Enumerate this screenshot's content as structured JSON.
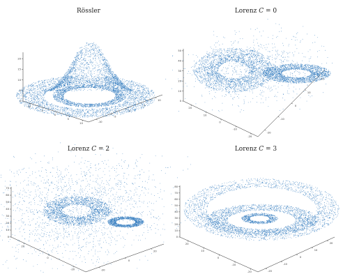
{
  "figure": {
    "point_color": "#1f6fb8"
  },
  "chart_data": [
    {
      "type": "scatter",
      "title": "Rössler",
      "z_ticks": [
        "0",
        "5",
        "10",
        "15",
        "20"
      ],
      "zlim": [
        0,
        23
      ],
      "x_ticks": [
        "-10",
        "-5",
        "0",
        "5",
        "10"
      ],
      "y_ticks": [
        "-10",
        "-5",
        "0",
        "5",
        "10"
      ],
      "grid": false,
      "legend": "none"
    },
    {
      "type": "scatter",
      "title": "Lorenz C = 0",
      "z_ticks": [
        "0",
        "10",
        "20",
        "30",
        "40",
        "50"
      ],
      "zlim": [
        0,
        52
      ],
      "x_ticks": [
        "20",
        "10",
        "0",
        "-10",
        "-20"
      ],
      "y_ticks": [
        "-20",
        "-10",
        "0",
        "10",
        "20"
      ],
      "grid": false,
      "legend": "none"
    },
    {
      "type": "scatter",
      "title": "Lorenz C = 2",
      "z_ticks": [
        "0",
        "10",
        "20",
        "30",
        "40",
        "50",
        "60",
        "70"
      ],
      "zlim": [
        0,
        72
      ],
      "x_ticks": [
        "20",
        "0",
        "-20"
      ],
      "y_ticks": [
        "-20",
        "0",
        "20"
      ],
      "grid": false,
      "legend": "none"
    },
    {
      "type": "scatter",
      "title": "Lorenz C = 3",
      "z_ticks": [
        "0",
        "10",
        "20",
        "30",
        "40",
        "50",
        "60",
        "70",
        "80"
      ],
      "zlim": [
        0,
        82
      ],
      "x_ticks": [
        "20",
        "10",
        "0",
        "-10",
        "-20"
      ],
      "y_ticks": [
        "-20",
        "-10",
        "0",
        "10",
        "20"
      ],
      "grid": false,
      "legend": "none"
    }
  ]
}
